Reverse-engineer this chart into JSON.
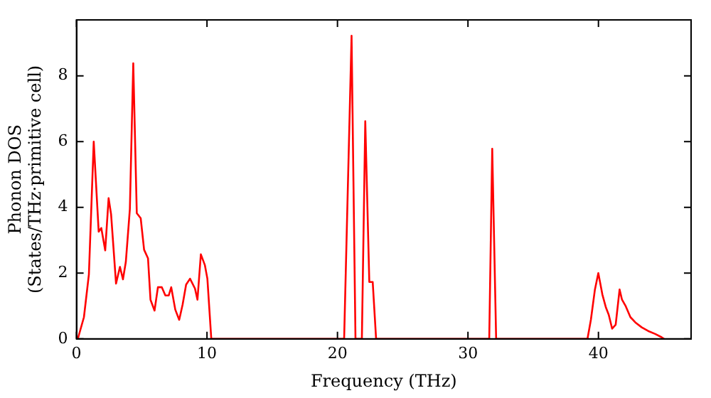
{
  "chart_data": {
    "type": "line",
    "xlabel": "Frequency (THz)",
    "ylabel": "Phonon DOS\n(States/THz·primitive cell)",
    "xlim": [
      0,
      47.1
    ],
    "ylim": [
      0,
      9.7
    ],
    "xticks": [
      0,
      10,
      20,
      30,
      40
    ],
    "yticks": [
      0,
      2,
      4,
      6,
      8
    ],
    "grid": false,
    "legend": false,
    "marker": "none",
    "line_style": "solid",
    "series": [
      {
        "color": "#ff0000",
        "x": [
          0.1,
          0.57,
          0.95,
          1.32,
          1.7,
          1.9,
          2.2,
          2.46,
          2.65,
          3.03,
          3.33,
          3.56,
          3.78,
          4.09,
          4.35,
          4.62,
          4.92,
          5.18,
          5.48,
          5.67,
          5.98,
          6.24,
          6.54,
          6.81,
          7.07,
          7.26,
          7.57,
          7.87,
          8.13,
          8.4,
          8.7,
          9.08,
          9.27,
          9.53,
          9.84,
          10.03,
          10.33,
          20.51,
          21.08,
          21.38,
          21.87,
          22.13,
          22.44,
          22.7,
          22.96,
          31.63,
          31.86,
          32.16,
          39.16,
          39.42,
          39.73,
          39.99,
          40.3,
          40.56,
          40.79,
          41.05,
          41.32,
          41.62,
          41.8,
          42.07,
          42.45,
          42.83,
          43.32,
          43.81,
          44.35,
          44.84,
          45.03
        ],
        "values": [
          0,
          0.66,
          1.96,
          6.0,
          3.26,
          3.37,
          2.69,
          4.28,
          3.79,
          1.68,
          2.19,
          1.81,
          2.34,
          3.95,
          8.38,
          3.82,
          3.67,
          2.71,
          2.45,
          1.19,
          0.86,
          1.57,
          1.57,
          1.32,
          1.32,
          1.57,
          0.89,
          0.58,
          1.04,
          1.65,
          1.83,
          1.53,
          1.19,
          2.57,
          2.24,
          1.83,
          0,
          0,
          9.22,
          0,
          0,
          6.62,
          1.73,
          1.73,
          0,
          0,
          5.78,
          0,
          0,
          0.58,
          1.5,
          2.0,
          1.35,
          0.97,
          0.73,
          0.31,
          0.43,
          1.5,
          1.2,
          1.01,
          0.66,
          0.5,
          0.35,
          0.24,
          0.15,
          0.05,
          0
        ]
      }
    ]
  }
}
